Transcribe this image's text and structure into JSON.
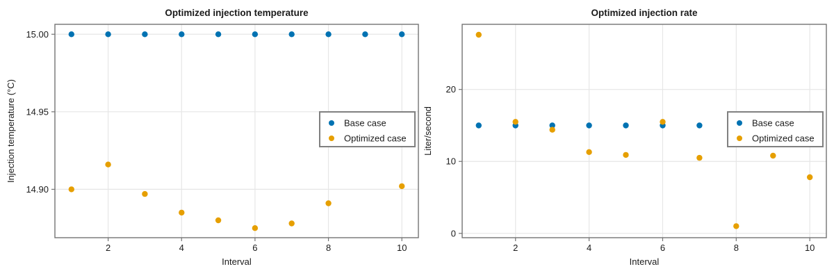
{
  "figure": {
    "background": "#ffffff"
  },
  "colors": {
    "base_case": "#0072B2",
    "optimized_case": "#E69F00",
    "frame": "#737373",
    "grid": "#e6e6e6",
    "tick_label": "#1a1a1a",
    "title": "#000000",
    "legend_border": "#808080",
    "legend_background": "#ffffff"
  },
  "legend": {
    "entries": [
      "Base case",
      "Optimized case"
    ]
  },
  "chart_data": [
    {
      "type": "scatter",
      "title": "Optimized injection temperature",
      "xlabel": "Interval",
      "ylabel": "Injection temperature (°C)",
      "xlim": [
        0.55,
        10.45
      ],
      "ylim": [
        14.8688,
        15.0064
      ],
      "grid": true,
      "xticks": [
        2,
        4,
        6,
        8,
        10
      ],
      "xtick_labels": [
        "2",
        "4",
        "6",
        "8",
        "10"
      ],
      "yticks": [
        15.0,
        14.95,
        14.9
      ],
      "ytick_labels": [
        "15.00",
        "14.95",
        "14.90"
      ],
      "legend_position": "right-center",
      "series": [
        {
          "name": "Base case",
          "color_key": "base_case",
          "x": [
            1,
            2,
            3,
            4,
            5,
            6,
            7,
            8,
            9,
            10
          ],
          "y": [
            15.0,
            15.0,
            15.0,
            15.0,
            15.0,
            15.0,
            15.0,
            15.0,
            15.0,
            15.0
          ]
        },
        {
          "name": "Optimized case",
          "color_key": "optimized_case",
          "x": [
            1,
            2,
            3,
            4,
            5,
            6,
            7,
            8,
            9,
            10
          ],
          "y": [
            14.9,
            14.916,
            14.897,
            14.885,
            14.88,
            14.875,
            14.878,
            14.891,
            14.93,
            14.902
          ]
        }
      ]
    },
    {
      "type": "scatter",
      "title": "Optimized injection rate",
      "xlabel": "Interval",
      "ylabel": "Liter/second",
      "xlim": [
        0.55,
        10.45
      ],
      "ylim": [
        -0.6,
        29.05
      ],
      "grid": true,
      "xticks": [
        2,
        4,
        6,
        8,
        10
      ],
      "xtick_labels": [
        "2",
        "4",
        "6",
        "8",
        "10"
      ],
      "yticks": [
        0,
        10,
        20
      ],
      "ytick_labels": [
        "0",
        "10",
        "20"
      ],
      "legend_position": "right-center",
      "series": [
        {
          "name": "Base case",
          "color_key": "base_case",
          "x": [
            1,
            2,
            3,
            4,
            5,
            6,
            7,
            8,
            9,
            10
          ],
          "y": [
            15.0,
            15.0,
            15.0,
            15.0,
            15.0,
            15.0,
            15.0,
            15.0,
            15.0,
            15.0
          ]
        },
        {
          "name": "Optimized case",
          "color_key": "optimized_case",
          "x": [
            1,
            2,
            3,
            4,
            5,
            6,
            7,
            8,
            9,
            10
          ],
          "y": [
            27.6,
            15.5,
            14.4,
            11.3,
            10.9,
            15.5,
            10.5,
            1.0,
            10.8,
            7.8
          ]
        }
      ]
    }
  ]
}
